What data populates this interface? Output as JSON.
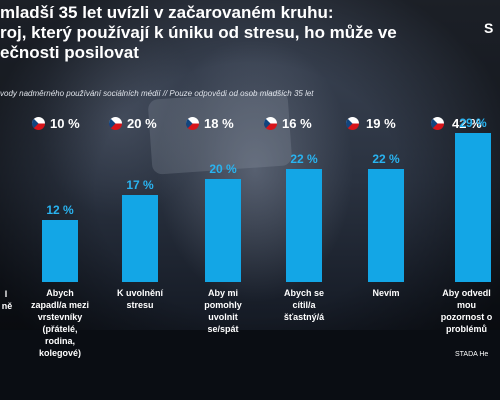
{
  "slide": {
    "title_lines": [
      "mladší 35 let uvízli v začarovaném kruhu:",
      "roj, který používají k úniku od stresu, ho může ve",
      "ečnosti posilovat"
    ],
    "subtitle": "vody nadměrného používání sociálních médií // Pouze odpovědi od osob mladších 35 let",
    "corner_mark": "S",
    "source": "STADA He"
  },
  "colors": {
    "bar": "#13a6e6",
    "bar_value": "#29b3f0",
    "flag_white": "#ffffff",
    "flag_red": "#d7141a",
    "flag_blue": "#11457e"
  },
  "chart_data": {
    "type": "bar",
    "ylim": [
      0,
      35
    ],
    "top_values": [
      "10 %",
      "20 %",
      "18 %",
      "16 %",
      "19 %",
      "42 %"
    ],
    "categories": [
      "Abych\nzapadl/a mezi\nvrstevníky\n(přátelé,\nrodina,\nkolegové)",
      "K uvolnění\nstresu",
      "Aby mi\npomohly\nuvolnit\nse/spát",
      "Abych se\ncítil/a\nšťastný/á",
      "Nevím",
      "Aby odvedl\nmou\npozornost o\nproblémů"
    ],
    "values": [
      12,
      17,
      20,
      22,
      22,
      29
    ],
    "value_labels": [
      "12 %",
      "17 %",
      "20 %",
      "22 %",
      "22 %",
      "29 %"
    ],
    "cut_left_label": [
      "l",
      "ně"
    ]
  }
}
